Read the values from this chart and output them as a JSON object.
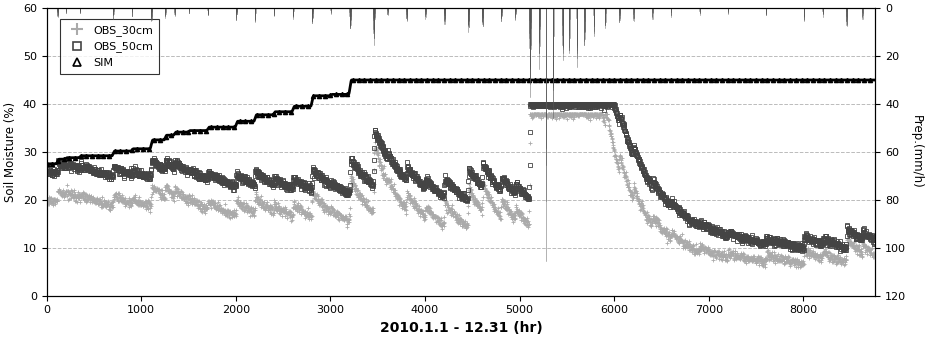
{
  "title": "",
  "xlabel": "2010.1.1 - 12.31 (hr)",
  "ylabel_left": "Soil Moisture (%)",
  "ylabel_right": "Prep.(mm/h)",
  "xlim": [
    0,
    8760
  ],
  "ylim_left": [
    0,
    60
  ],
  "ylim_right": [
    0,
    120
  ],
  "xticks": [
    0,
    1000,
    2000,
    3000,
    4000,
    5000,
    6000,
    7000,
    8000
  ],
  "yticks_left": [
    0,
    10,
    20,
    30,
    40,
    50,
    60
  ],
  "yticks_right": [
    0,
    20,
    40,
    60,
    80,
    100,
    120
  ],
  "color_obs30": "#aaaaaa",
  "color_obs50": "#444444",
  "color_sim": "#000000",
  "color_precip": "#555555",
  "legend_labels": [
    "OBS_30cm",
    "OBS_50cm",
    "SIM"
  ],
  "grid_color": "#bbbbbb",
  "grid_linestyle": "--",
  "background_color": "#ffffff",
  "rain_events": [
    {
      "hour": 110,
      "intensity": 3,
      "duration": 12
    },
    {
      "hour": 200,
      "intensity": 2,
      "duration": 6
    },
    {
      "hour": 350,
      "intensity": 2,
      "duration": 8
    },
    {
      "hour": 700,
      "intensity": 4,
      "duration": 10
    },
    {
      "hour": 900,
      "intensity": 3,
      "duration": 6
    },
    {
      "hour": 1100,
      "intensity": 5,
      "duration": 15
    },
    {
      "hour": 1250,
      "intensity": 4,
      "duration": 10
    },
    {
      "hour": 1350,
      "intensity": 3,
      "duration": 8
    },
    {
      "hour": 1500,
      "intensity": 2,
      "duration": 6
    },
    {
      "hour": 1700,
      "intensity": 3,
      "duration": 10
    },
    {
      "hour": 2000,
      "intensity": 4,
      "duration": 12
    },
    {
      "hour": 2200,
      "intensity": 5,
      "duration": 10
    },
    {
      "hour": 2400,
      "intensity": 3,
      "duration": 8
    },
    {
      "hour": 2600,
      "intensity": 4,
      "duration": 12
    },
    {
      "hour": 2800,
      "intensity": 6,
      "duration": 15
    },
    {
      "hour": 3000,
      "intensity": 2,
      "duration": 6
    },
    {
      "hour": 3200,
      "intensity": 8,
      "duration": 18
    },
    {
      "hour": 3450,
      "intensity": 12,
      "duration": 20
    },
    {
      "hour": 3600,
      "intensity": 3,
      "duration": 8
    },
    {
      "hour": 3800,
      "intensity": 5,
      "duration": 12
    },
    {
      "hour": 4000,
      "intensity": 4,
      "duration": 10
    },
    {
      "hour": 4200,
      "intensity": 6,
      "duration": 14
    },
    {
      "hour": 4450,
      "intensity": 8,
      "duration": 16
    },
    {
      "hour": 4600,
      "intensity": 7,
      "duration": 14
    },
    {
      "hour": 4800,
      "intensity": 5,
      "duration": 12
    },
    {
      "hour": 4950,
      "intensity": 4,
      "duration": 10
    },
    {
      "hour": 5100,
      "intensity": 30,
      "duration": 20
    },
    {
      "hour": 5200,
      "intensity": 20,
      "duration": 15
    },
    {
      "hour": 5280,
      "intensity": 100,
      "duration": 5
    },
    {
      "hour": 5350,
      "intensity": 40,
      "duration": 10
    },
    {
      "hour": 5450,
      "intensity": 25,
      "duration": 12
    },
    {
      "hour": 5520,
      "intensity": 18,
      "duration": 10
    },
    {
      "hour": 5600,
      "intensity": 20,
      "duration": 12
    },
    {
      "hour": 5680,
      "intensity": 15,
      "duration": 10
    },
    {
      "hour": 5780,
      "intensity": 10,
      "duration": 10
    },
    {
      "hour": 5900,
      "intensity": 8,
      "duration": 10
    },
    {
      "hour": 6050,
      "intensity": 6,
      "duration": 10
    },
    {
      "hour": 6200,
      "intensity": 5,
      "duration": 8
    },
    {
      "hour": 6400,
      "intensity": 4,
      "duration": 8
    },
    {
      "hour": 6600,
      "intensity": 3,
      "duration": 6
    },
    {
      "hour": 6900,
      "intensity": 3,
      "duration": 6
    },
    {
      "hour": 7200,
      "intensity": 2,
      "duration": 6
    },
    {
      "hour": 7600,
      "intensity": 3,
      "duration": 8
    },
    {
      "hour": 8000,
      "intensity": 5,
      "duration": 10
    },
    {
      "hour": 8200,
      "intensity": 3,
      "duration": 8
    },
    {
      "hour": 8450,
      "intensity": 7,
      "duration": 12
    },
    {
      "hour": 8620,
      "intensity": 4,
      "duration": 8
    }
  ]
}
